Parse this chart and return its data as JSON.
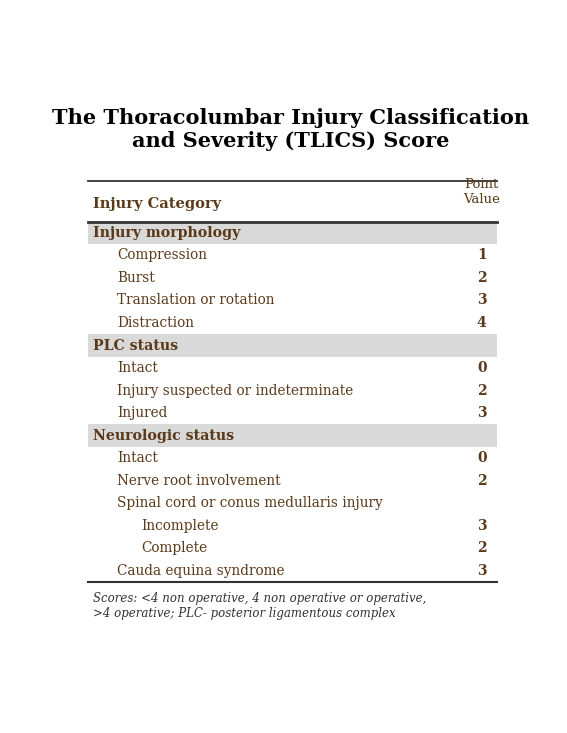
{
  "title": "The Thoracolumbar Injury Classification\nand Severity (TLICS) Score",
  "title_fontsize": 15,
  "header_col1": "Injury Category",
  "header_col2": "Point\nValue",
  "text_color": "#5B3A1A",
  "section_bg": "#D9D9D9",
  "row_bg": "#ffffff",
  "line_color": "#333333",
  "footnote": "Scores: <4 non operative, 4 non operative or operative,\n>4 operative; PLC- posterior ligamentous complex",
  "rows": [
    {
      "label": "Injury morphology",
      "value": "",
      "indent": 0,
      "is_section": true
    },
    {
      "label": "Compression",
      "value": "1",
      "indent": 1,
      "is_section": false
    },
    {
      "label": "Burst",
      "value": "2",
      "indent": 1,
      "is_section": false
    },
    {
      "label": "Translation or rotation",
      "value": "3",
      "indent": 1,
      "is_section": false
    },
    {
      "label": "Distraction",
      "value": "4",
      "indent": 1,
      "is_section": false
    },
    {
      "label": "PLC status",
      "value": "",
      "indent": 0,
      "is_section": true
    },
    {
      "label": "Intact",
      "value": "0",
      "indent": 1,
      "is_section": false
    },
    {
      "label": "Injury suspected or indeterminate",
      "value": "2",
      "indent": 1,
      "is_section": false
    },
    {
      "label": "Injured",
      "value": "3",
      "indent": 1,
      "is_section": false
    },
    {
      "label": "Neurologic status",
      "value": "",
      "indent": 0,
      "is_section": true
    },
    {
      "label": "Intact",
      "value": "0",
      "indent": 1,
      "is_section": false
    },
    {
      "label": "Nerve root involvement",
      "value": "2",
      "indent": 1,
      "is_section": false
    },
    {
      "label": "Spinal cord or conus medullaris injury",
      "value": "",
      "indent": 1,
      "is_section": false
    },
    {
      "label": "Incomplete",
      "value": "3",
      "indent": 2,
      "is_section": false
    },
    {
      "label": "Complete",
      "value": "2",
      "indent": 2,
      "is_section": false
    },
    {
      "label": "Cauda equina syndrome",
      "value": "3",
      "indent": 1,
      "is_section": false
    }
  ]
}
